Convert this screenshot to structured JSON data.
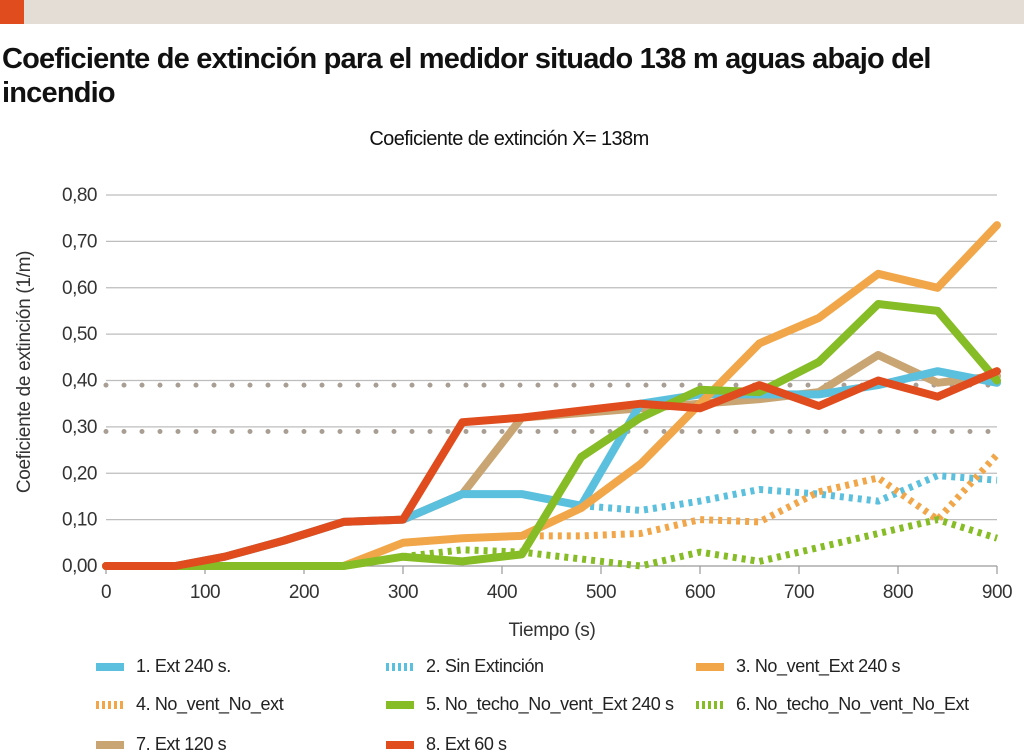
{
  "header": {
    "title": "Coeficiente de extinción para el medidor situado 138 m aguas abajo del incendio"
  },
  "colors": {
    "accent": "#e04c1e",
    "topbar": "#e4ddd5",
    "grid": "#bdbdbd",
    "reference": "#a89e94"
  },
  "chart_data": {
    "type": "line",
    "title": "Coeficiente de extinción X= 138m",
    "xlabel": "Tiempo (s)",
    "ylabel": "Coeficiente de extinción (1/m)",
    "xlim": [
      0,
      900
    ],
    "ylim": [
      0,
      0.8
    ],
    "x_ticks": [
      0,
      100,
      200,
      300,
      400,
      500,
      600,
      700,
      800,
      900
    ],
    "x_tick_labels": [
      "0",
      "100",
      "200",
      "300",
      "400",
      "500",
      "600",
      "700",
      "800",
      "900"
    ],
    "y_ticks": [
      0,
      0.1,
      0.2,
      0.3,
      0.4,
      0.5,
      0.6,
      0.7,
      0.8
    ],
    "y_tick_labels": [
      "0,00",
      "0,10",
      "0,20",
      "0,30",
      "0,40",
      "0,50",
      "0,60",
      "0,70",
      "0,80"
    ],
    "grid": true,
    "legend_position": "bottom",
    "reference_lines": [
      {
        "y": 0.39,
        "style": "dotted"
      },
      {
        "y": 0.29,
        "style": "dotted"
      }
    ],
    "x": [
      0,
      70,
      120,
      180,
      240,
      300,
      360,
      420,
      480,
      540,
      600,
      660,
      720,
      780,
      840,
      900
    ],
    "series": [
      {
        "name": "7. Ext 120 s",
        "color": "#c9a574",
        "style": "solid",
        "values": [
          0,
          0,
          0.02,
          0.055,
          0.095,
          0.1,
          0.155,
          0.32,
          0.33,
          0.34,
          0.35,
          0.36,
          0.375,
          0.455,
          0.395,
          0.41
        ]
      },
      {
        "name": "2. Sin Extinción",
        "color": "#5bc0de",
        "style": "dotted",
        "values": [
          null,
          null,
          null,
          null,
          null,
          null,
          null,
          null,
          0.13,
          0.12,
          0.14,
          0.165,
          0.155,
          0.14,
          0.195,
          0.185
        ]
      },
      {
        "name": "4. No_vent_No_ext",
        "color": "#f2a64a",
        "style": "dotted",
        "values": [
          null,
          null,
          null,
          null,
          null,
          null,
          null,
          0.065,
          0.065,
          0.07,
          0.1,
          0.095,
          0.16,
          0.19,
          0.1,
          0.24
        ]
      },
      {
        "name": "6. No_techo_No_vent_No_Ext",
        "color": "#86bc25",
        "style": "dotted",
        "values": [
          null,
          null,
          null,
          null,
          null,
          0.02,
          0.035,
          0.03,
          0.015,
          0.0,
          0.03,
          0.01,
          0.04,
          0.07,
          0.1,
          0.06
        ]
      },
      {
        "name": "1. Ext 240 s.",
        "color": "#5bc0de",
        "style": "solid",
        "values": [
          0,
          0,
          0.02,
          0.055,
          0.095,
          0.1,
          0.155,
          0.155,
          0.13,
          0.35,
          0.37,
          0.37,
          0.37,
          0.39,
          0.42,
          0.395
        ]
      },
      {
        "name": "3. No_vent_Ext 240 s",
        "color": "#f2a64a",
        "style": "solid",
        "values": [
          0,
          0,
          0,
          0,
          0,
          0.05,
          0.06,
          0.065,
          0.125,
          0.22,
          0.35,
          0.48,
          0.535,
          0.63,
          0.6,
          0.735
        ]
      },
      {
        "name": "5. No_techo_No_vent_Ext 240 s",
        "color": "#86bc25",
        "style": "solid",
        "values": [
          0,
          0,
          0,
          0,
          0,
          0.02,
          0.01,
          0.025,
          0.235,
          0.32,
          0.38,
          0.375,
          0.44,
          0.565,
          0.55,
          0.4
        ]
      },
      {
        "name": "8. Ext 60 s",
        "color": "#e04c1e",
        "style": "solid",
        "values": [
          0,
          0,
          0.02,
          0.055,
          0.095,
          0.1,
          0.31,
          0.32,
          0.335,
          0.35,
          0.34,
          0.39,
          0.345,
          0.4,
          0.365,
          0.42
        ]
      }
    ]
  },
  "legend": [
    {
      "label": "1. Ext 240 s.",
      "color": "#5bc0de",
      "style": "solid"
    },
    {
      "label": "2. Sin Extinción",
      "color": "#5bc0de",
      "style": "dotted"
    },
    {
      "label": "3. No_vent_Ext 240 s",
      "color": "#f2a64a",
      "style": "solid"
    },
    {
      "label": "4. No_vent_No_ext",
      "color": "#f2a64a",
      "style": "dotted"
    },
    {
      "label": "5. No_techo_No_vent_Ext 240 s",
      "color": "#86bc25",
      "style": "solid"
    },
    {
      "label": "6. No_techo_No_vent_No_Ext",
      "color": "#86bc25",
      "style": "dotted"
    },
    {
      "label": "7. Ext 120 s",
      "color": "#c9a574",
      "style": "solid"
    },
    {
      "label": "8. Ext 60 s",
      "color": "#e04c1e",
      "style": "solid"
    }
  ]
}
